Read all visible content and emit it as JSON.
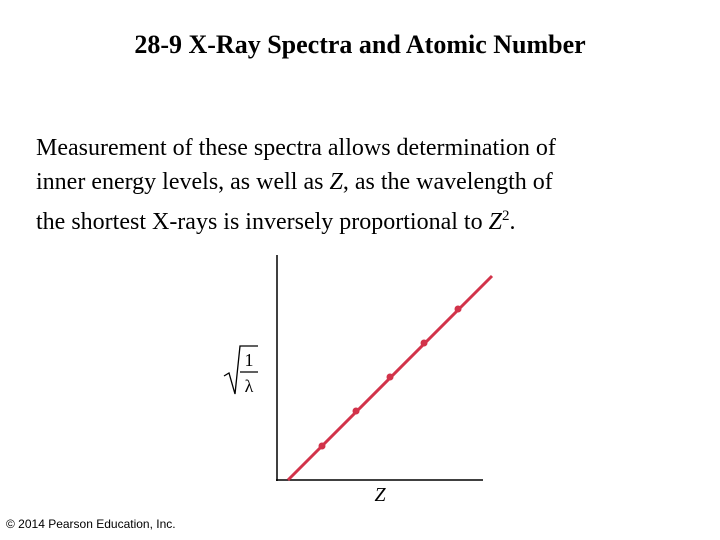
{
  "header": {
    "title": "28-9 X-Ray Spectra and Atomic Number"
  },
  "body": {
    "lines": [
      [
        "Measurement of these spectra allows determination of"
      ],
      [
        "inner energy levels, as well as ",
        "Z",
        ", as the wavelength of"
      ],
      [
        "the shortest X-rays is inversely proportional to ",
        "Z",
        "2",
        "."
      ]
    ]
  },
  "graph": {
    "y_label_numerator": "1",
    "y_label_denominator": "λ",
    "x_label": "Z"
  },
  "footer": {
    "copyright": "© 2014 Pearson Education, Inc."
  }
}
